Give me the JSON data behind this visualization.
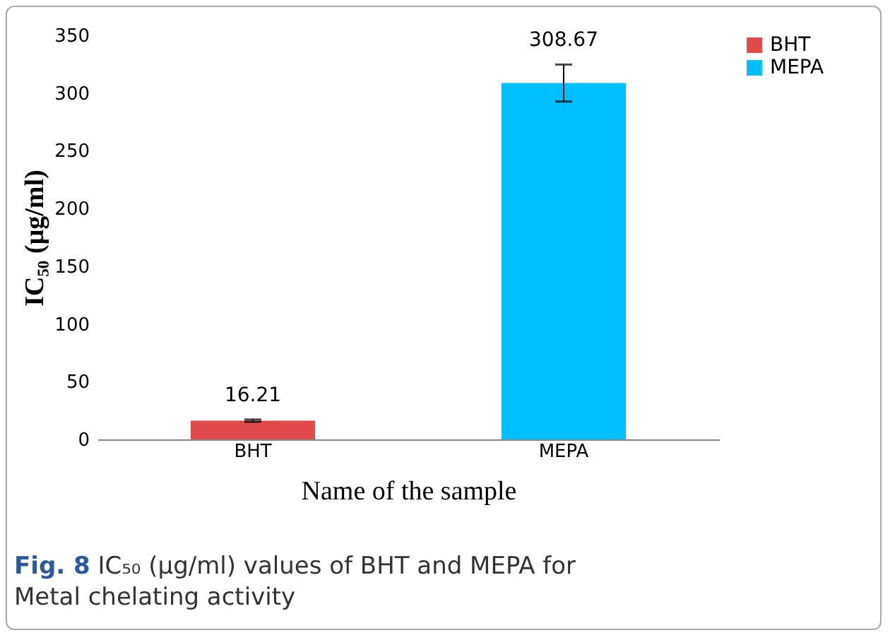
{
  "chart_data": {
    "type": "bar",
    "xlabel": "Name of the sample",
    "ylabel": "IC₅₀ (µg/ml)",
    "categories": [
      "BHT",
      "MEPA"
    ],
    "series": [
      {
        "name": "BHT",
        "color": "#e04a4a",
        "values": [
          16.21,
          null
        ],
        "errors": [
          1,
          null
        ]
      },
      {
        "name": "MEPA",
        "color": "#00bfff",
        "values": [
          null,
          308.67
        ],
        "errors": [
          null,
          16
        ]
      }
    ],
    "data_labels": true,
    "ylim": [
      0,
      350
    ],
    "yticks": [
      0,
      50,
      100,
      150,
      200,
      250,
      300,
      350
    ],
    "grid": false,
    "legend": "right",
    "annotations": [
      "Fig. 8 IC₅₀ (µg/ml) values of BHT and MEPA for Metal chelating activity"
    ]
  }
}
